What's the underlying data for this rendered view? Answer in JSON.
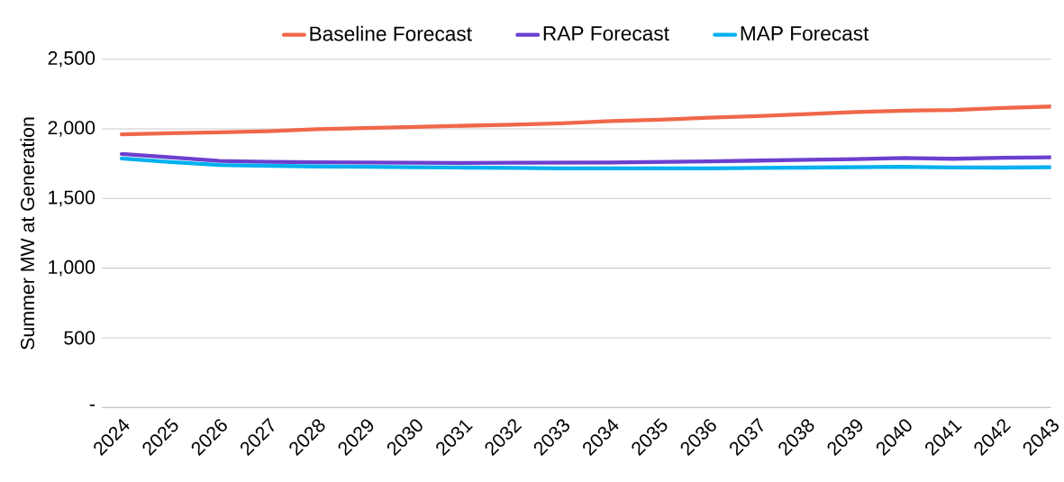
{
  "chart_data": {
    "type": "line",
    "ylabel": "Summer MW at Generation",
    "categories": [
      "2024",
      "2025",
      "2026",
      "2027",
      "2028",
      "2029",
      "2030",
      "2031",
      "2032",
      "2033",
      "2034",
      "2035",
      "2036",
      "2037",
      "2038",
      "2039",
      "2040",
      "2041",
      "2042",
      "2043"
    ],
    "series": [
      {
        "name": "Baseline Forecast",
        "color": "#f0674a",
        "values": [
          1960,
          1968,
          1975,
          1983,
          1998,
          2006,
          2014,
          2022,
          2030,
          2040,
          2055,
          2066,
          2080,
          2092,
          2106,
          2120,
          2130,
          2135,
          2150,
          2160
        ]
      },
      {
        "name": "RAP Forecast",
        "color": "#6c3fcf",
        "values": [
          1820,
          1795,
          1770,
          1763,
          1760,
          1758,
          1756,
          1755,
          1756,
          1757,
          1758,
          1762,
          1766,
          1772,
          1777,
          1783,
          1790,
          1785,
          1792,
          1795
        ]
      },
      {
        "name": "MAP Forecast",
        "color": "#00b0f0",
        "values": [
          1787,
          1762,
          1740,
          1735,
          1730,
          1727,
          1724,
          1722,
          1720,
          1717,
          1716,
          1716,
          1717,
          1720,
          1722,
          1725,
          1728,
          1722,
          1722,
          1725
        ]
      }
    ],
    "ylim": [
      0,
      2500
    ],
    "yticks": [
      {
        "value": 0,
        "label": "-"
      },
      {
        "value": 500,
        "label": "500"
      },
      {
        "value": 1000,
        "label": "1,000"
      },
      {
        "value": 1500,
        "label": "1,500"
      },
      {
        "value": 2000,
        "label": "2,000"
      },
      {
        "value": 2500,
        "label": "2,500"
      }
    ],
    "grid": "y",
    "legend": "top",
    "marker": "none",
    "line_style": "solid"
  }
}
